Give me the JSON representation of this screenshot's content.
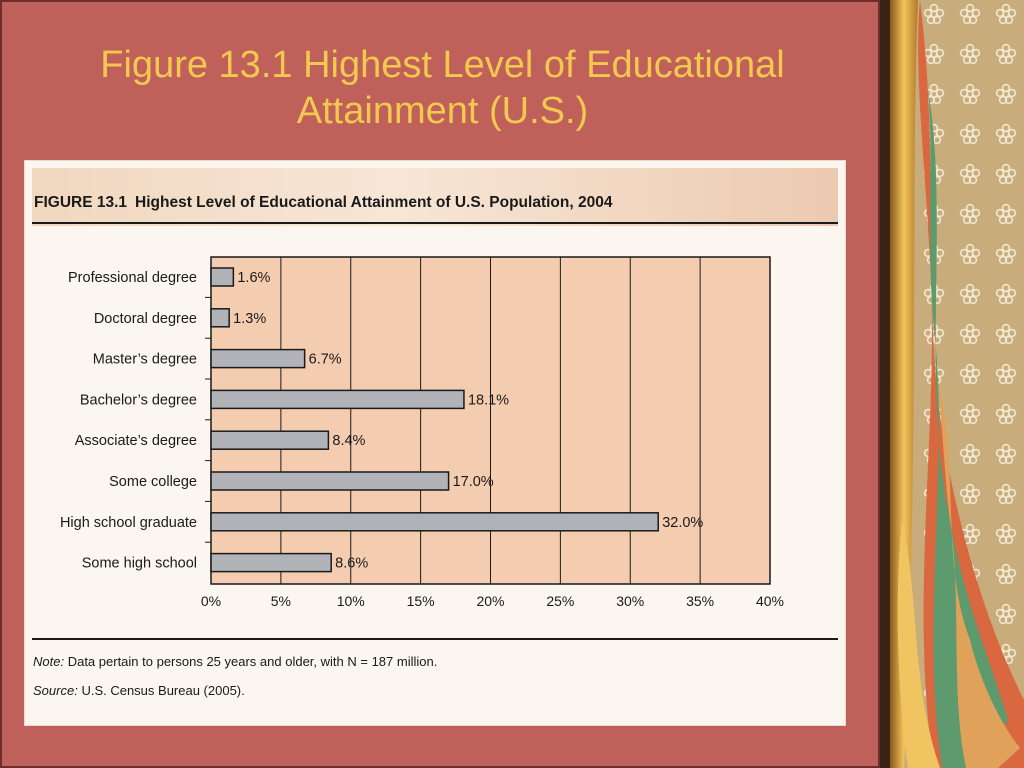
{
  "slide": {
    "title_line1": "Figure 13.1 Highest Level of Educational",
    "title_line2": "Attainment (U.S.)"
  },
  "figure": {
    "caption_number": "FIGURE 13.1",
    "caption_text": "Highest Level of Educational Attainment of U.S. Population, 2004",
    "note_label": "Note:",
    "note_text": "Data pertain to persons 25 years and older, with N = 187 million.",
    "source_label": "Source:",
    "source_text": "U.S. Census Bureau (2005)."
  },
  "colors": {
    "slide_background": "#c0605a",
    "title_text": "#f2c84e",
    "plot_background": "#f4cdb0",
    "bar_fill": "#b1b3b9",
    "bar_stroke": "#1a1a1a"
  },
  "chart_data": {
    "type": "bar",
    "orientation": "horizontal",
    "title": "Highest Level of Educational Attainment of U.S. Population, 2004",
    "categories": [
      "Professional degree",
      "Doctoral degree",
      "Master’s degree",
      "Bachelor’s degree",
      "Associate’s degree",
      "Some college",
      "High school graduate",
      "Some high school"
    ],
    "values": [
      1.6,
      1.3,
      6.7,
      18.1,
      8.4,
      17.0,
      32.0,
      8.6
    ],
    "value_labels": [
      "1.6%",
      "1.3%",
      "6.7%",
      "18.1%",
      "8.4%",
      "17.0%",
      "32.0%",
      "8.6%"
    ],
    "x_ticks": [
      0,
      5,
      10,
      15,
      20,
      25,
      30,
      35,
      40
    ],
    "x_tick_labels": [
      "0%",
      "5%",
      "10%",
      "15%",
      "20%",
      "25%",
      "30%",
      "35%",
      "40%"
    ],
    "xlim": [
      0,
      40
    ],
    "xlabel": "",
    "ylabel": "",
    "grid": true,
    "legend": "none"
  }
}
